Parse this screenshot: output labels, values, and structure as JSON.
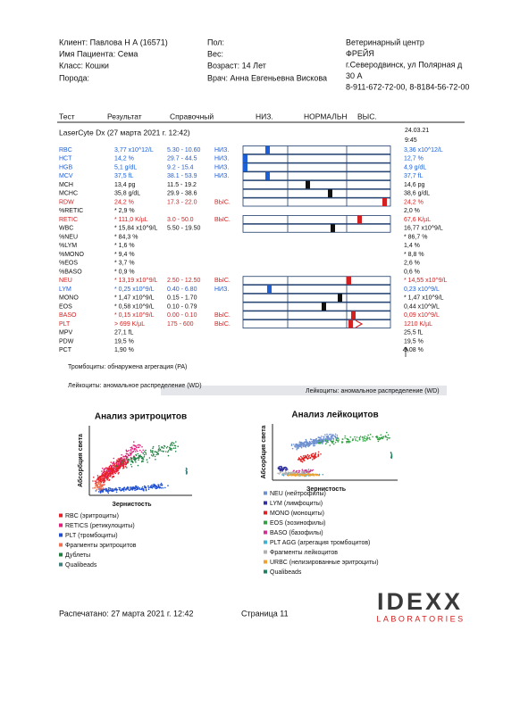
{
  "header": {
    "left": [
      "Клиент: Павлова Н А (16571)",
      "Имя Пациента: Сема",
      "Класс: Кошки",
      "Порода:"
    ],
    "middle": [
      "Пол:",
      "Вес:",
      "Возраст: 14 Лет",
      "Врач: Анна Евгеньевна Вискова"
    ],
    "clinic": [
      "Ветеринарный центр",
      "ФРЕЙЯ",
      "г.Северодвинск, ул Полярная д",
      "30 А",
      "8-911-672-72-00, 8-8184-56-72-00"
    ]
  },
  "table": {
    "columns": [
      "Тест",
      "Результат",
      "Справочный",
      "НИЗ.",
      "НОРМАЛЬН",
      "ВЫС."
    ],
    "instrument": "LaserCyte Dx (27 марта 2021 г. 12:42)",
    "previous_date": "24.03.21",
    "previous_time": "9:45",
    "rows": [
      {
        "test": "RBC",
        "result": "3,77 x10^12/L",
        "ref": "5.30 - 10.60",
        "flag": "НИЗ.",
        "prev": "3,36 x10^12/L",
        "color": "#1d5fd6"
      },
      {
        "test": "HCT",
        "result": "14,2 %",
        "ref": "29.7 - 44.5",
        "flag": "НИЗ.",
        "prev": "12,7 %",
        "color": "#1d5fd6"
      },
      {
        "test": "HGB",
        "result": "5,1 g/dL",
        "ref": "9.2 - 15.4",
        "flag": "НИЗ.",
        "prev": "4,9 g/dL",
        "color": "#1d5fd6"
      },
      {
        "test": "MCV",
        "result": "37,5 fL",
        "ref": "38.1 - 53.9",
        "flag": "НИЗ.",
        "prev": "37,7 fL",
        "color": "#1d5fd6"
      },
      {
        "test": "MCH",
        "result": "13,4 pg",
        "ref": "11.5 - 19.2",
        "prev": "14,6 pg"
      },
      {
        "test": "MCHC",
        "result": "35,8 g/dL",
        "ref": "29.9 - 38.6",
        "prev": "38,6 g/dL"
      },
      {
        "test": "RDW",
        "result": "24,2 %",
        "ref": "17.3 - 22.0",
        "flag": "ВЫС.",
        "prev": "24,2 %",
        "color": "#d42020"
      },
      {
        "test": "%RETIC",
        "result": "* 2,9 %",
        "prev": "2,0 %"
      },
      {
        "test": "RETIC",
        "result": "* 111,0 K/µL",
        "ref": "3.0 - 50.0",
        "flag": "ВЫС.",
        "prev": "67,6 K/µL",
        "color": "#d42020"
      },
      {
        "test": "WBC",
        "result": "* 15,84 x10^9/L",
        "ref": "5.50 - 19.50",
        "prev": "16,77 x10^9/L"
      },
      {
        "test": "%NEU",
        "result": "* 84,3 %",
        "prev": "* 86,7 %"
      },
      {
        "test": "%LYM",
        "result": "* 1,6 %",
        "prev": "1,4 %"
      },
      {
        "test": "%MONO",
        "result": "* 9,4 %",
        "prev": "* 8,8 %"
      },
      {
        "test": "%EOS",
        "result": "* 3,7 %",
        "prev": "2,6 %"
      },
      {
        "test": "%BASO",
        "result": "* 0,9 %",
        "prev": "0,6 %"
      },
      {
        "test": "NEU",
        "result": "* 13,19 x10^9/L",
        "ref": "2.50 - 12.50",
        "flag": "ВЫС.",
        "prev": "* 14,55 x10^9/L",
        "color": "#d42020"
      },
      {
        "test": "LYM",
        "result": "* 0,25 x10^9/L",
        "ref": "0.40 - 6.80",
        "flag": "НИЗ.",
        "prev": "0,23 x10^9/L",
        "color": "#1d5fd6"
      },
      {
        "test": "MONO",
        "result": "* 1,47 x10^9/L",
        "ref": "0.15 - 1.70",
        "prev": "* 1,47 x10^9/L"
      },
      {
        "test": "EOS",
        "result": "* 0,58 x10^9/L",
        "ref": "0.10 - 0.79",
        "prev": "0,44 x10^9/L"
      },
      {
        "test": "BASO",
        "result": "* 0,15 x10^9/L",
        "ref": "0.00 - 0.10",
        "flag": "ВЫС.",
        "prev": "0,09 x10^9/L",
        "color": "#d42020"
      },
      {
        "test": "PLT",
        "result": "> 699 K/µL",
        "ref": "175 - 600",
        "flag": "ВЫС.",
        "prev": "1210 K/µL",
        "color": "#d42020"
      },
      {
        "test": "MPV",
        "result": "27,1 fL",
        "prev": "25,5 fL"
      },
      {
        "test": "PDW",
        "result": "19,5 %",
        "prev": "19,5 %"
      },
      {
        "test": "PCT",
        "result": "1,90 %",
        "prev": "3,08 %"
      }
    ]
  },
  "notes": [
    "Тромбоциты: обнаружена агрегация (PA)",
    "Лейкоциты: аномальное распределение (WD)"
  ],
  "banner": "Лейкоциты: аномальное распределение (WD)",
  "rbc_plot": {
    "title": "Анализ эритроцитов",
    "y_label": "Абсорбция света",
    "x_label": "Зернистость",
    "legend": [
      {
        "name": "RBC (эритроциты)",
        "color": "#e8202a"
      },
      {
        "name": "RETICS (ретикулоциты)",
        "color": "#e0207a"
      },
      {
        "name": "PLT (тромбоциты)",
        "color": "#2050d0"
      },
      {
        "name": "Фрагменты эритроцитов",
        "color": "#f07050"
      },
      {
        "name": "Дублеты",
        "color": "#208040"
      },
      {
        "name": "Qualibeads",
        "color": "#408080"
      }
    ]
  },
  "wbc_plot": {
    "title": "Анализ лейкоцитов",
    "y_label": "Абсорбция света",
    "x_label": "Зернистость",
    "legend": [
      {
        "name": "NEU (нейтрофилы)",
        "color": "#7090d0"
      },
      {
        "name": "LYM (лимфоциты)",
        "color": "#3030a0"
      },
      {
        "name": "MONO (моноциты)",
        "color": "#e02020"
      },
      {
        "name": "EOS (эозинофилы)",
        "color": "#30a040"
      },
      {
        "name": "BASO (базофилы)",
        "color": "#d03090"
      },
      {
        "name": "PLT AGG (агрегация тромбоцитов)",
        "color": "#40b0d0"
      },
      {
        "name": "Фрагменты лейкоцитов",
        "color": "#b0b0b0"
      },
      {
        "name": "URBC (нелизированные эритроциты)",
        "color": "#f0a030"
      },
      {
        "name": "Qualibeads",
        "color": "#208060"
      }
    ]
  },
  "footer": {
    "printed": "Распечатано: 27 марта 2021 г. 12:42",
    "page": "Страница 11",
    "logo": "IDEXX",
    "logo_sub": "LABORATORIES"
  }
}
